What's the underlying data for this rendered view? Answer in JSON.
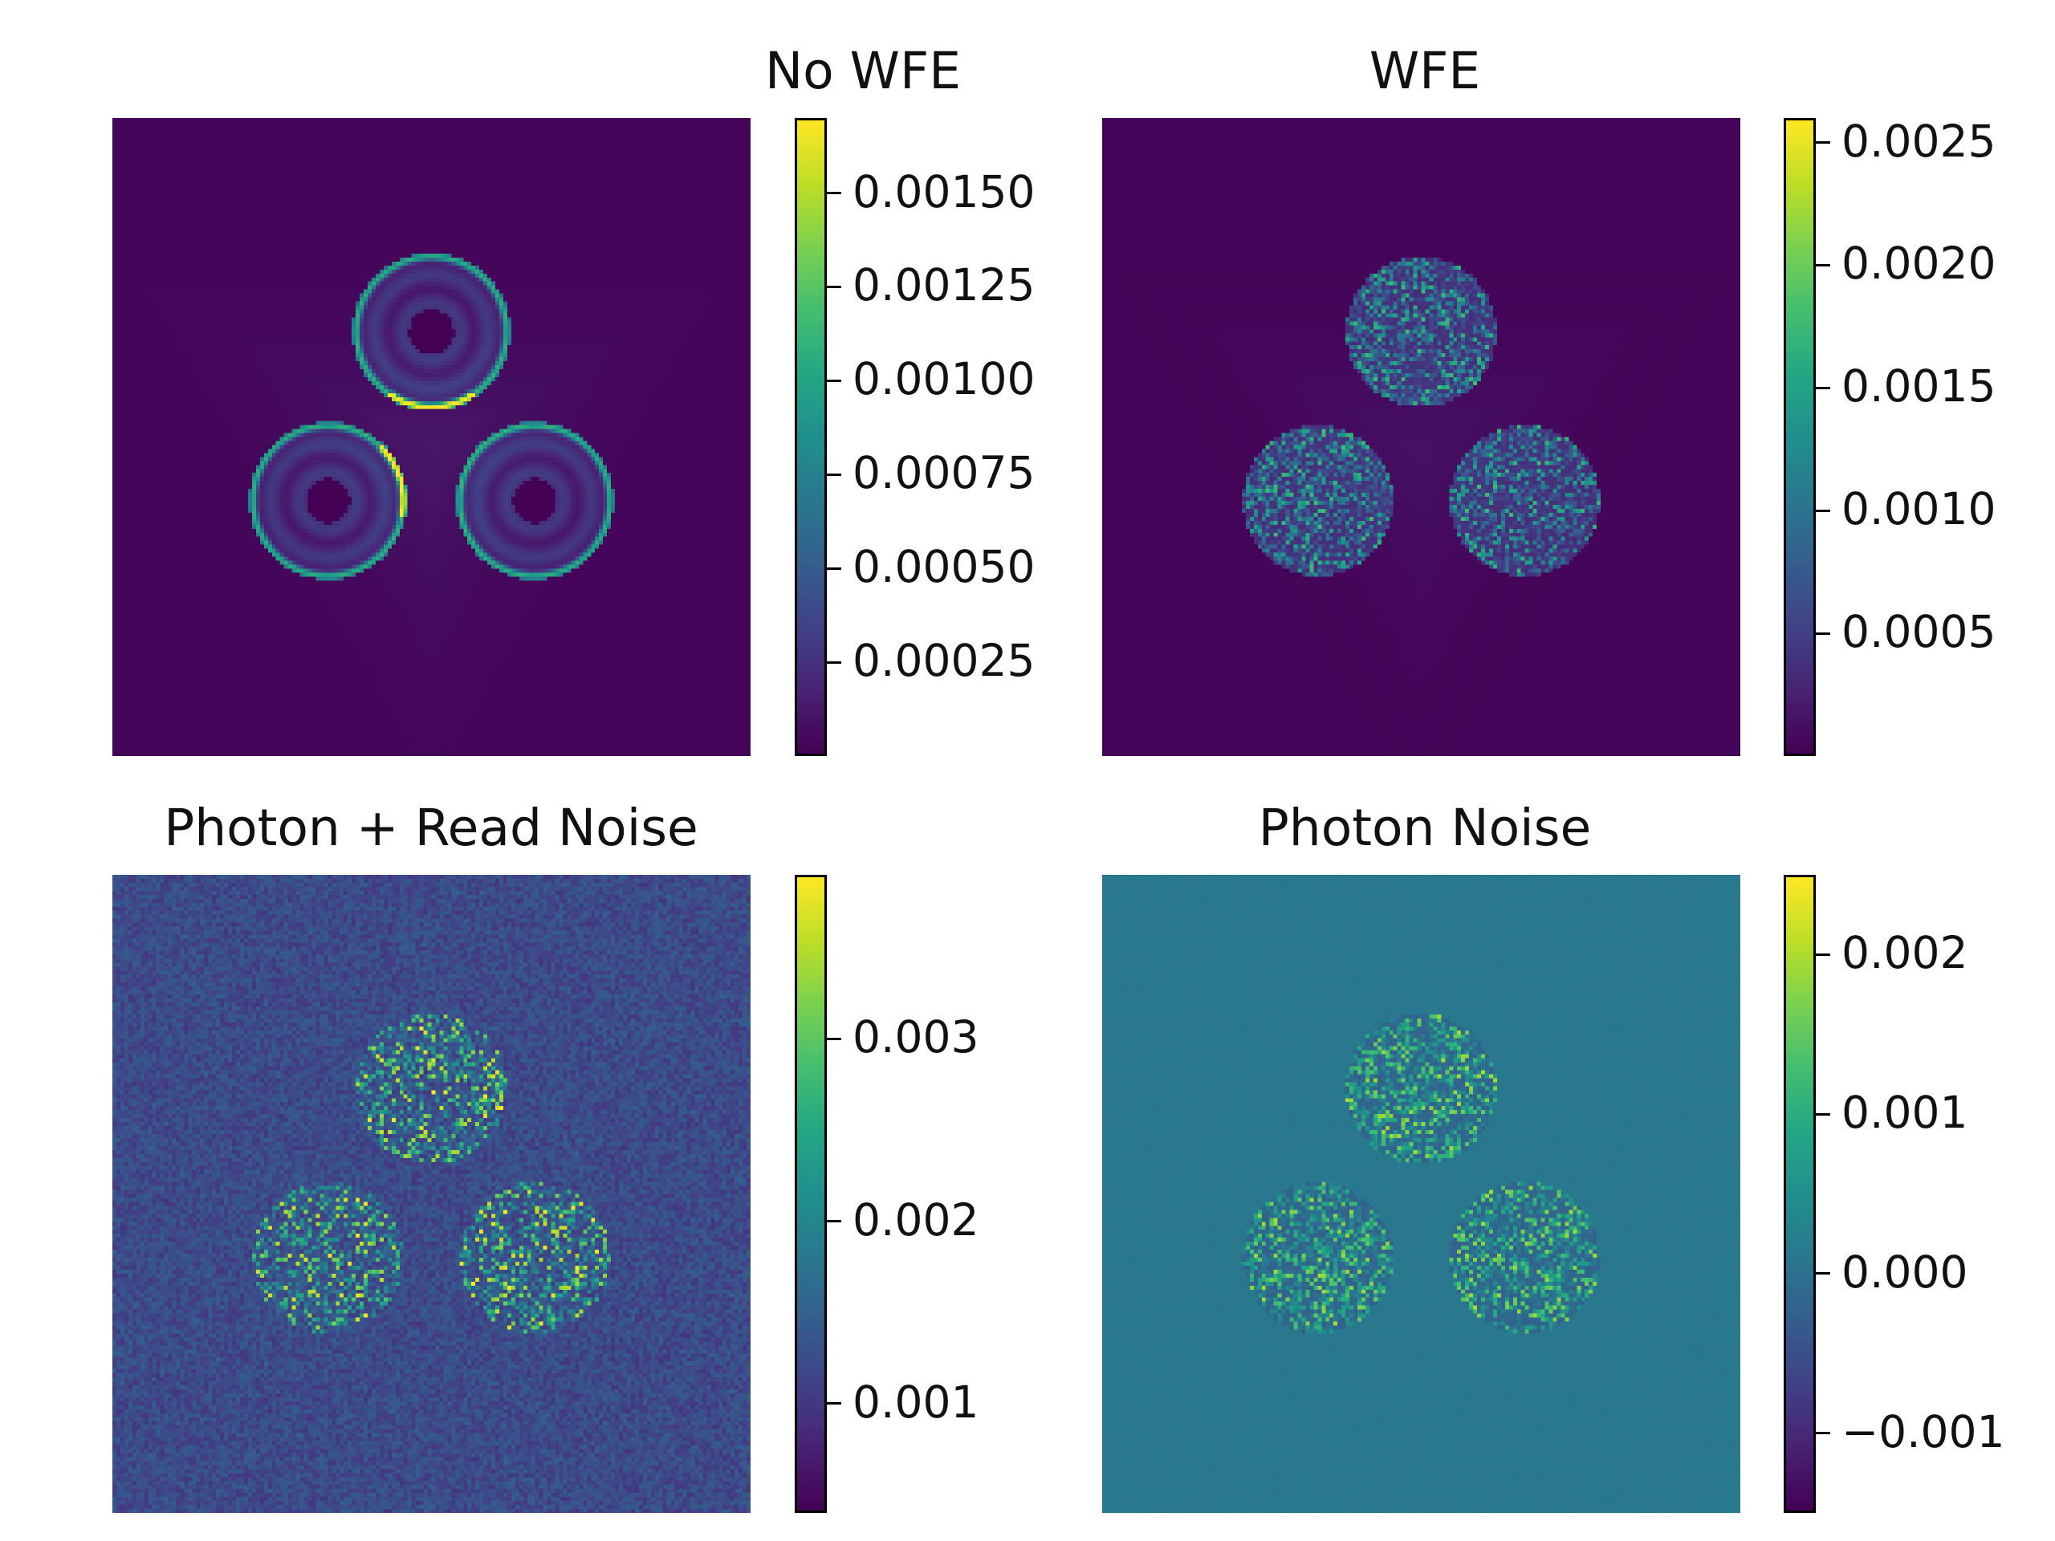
{
  "colors": {
    "viridis_low": "#440154",
    "viridis_mid": "#21918c",
    "viridis_high": "#fde725",
    "noise_background": "#2c728e"
  },
  "chart_data": [
    {
      "type": "heatmap",
      "title": "No WFE",
      "colormap": "viridis",
      "colorbar": {
        "range": [
          0.0,
          0.0017
        ],
        "ticks": [
          0.00025,
          0.0005,
          0.00075,
          0.001,
          0.00125,
          0.0015
        ],
        "tick_labels": [
          "0.00025",
          "0.00050",
          "0.00075",
          "0.00100",
          "0.00125",
          "0.00150"
        ]
      },
      "pattern": "rings",
      "axes_visible": false
    },
    {
      "type": "heatmap",
      "title": "WFE",
      "colormap": "viridis",
      "colorbar": {
        "range": [
          0.0,
          0.0026
        ],
        "ticks": [
          0.0005,
          0.001,
          0.0015,
          0.002,
          0.0025
        ],
        "tick_labels": [
          "0.0005",
          "0.0010",
          "0.0015",
          "0.0020",
          "0.0025"
        ]
      },
      "pattern": "speckle",
      "axes_visible": false
    },
    {
      "type": "heatmap",
      "title": "Photon + Read Noise",
      "colormap": "viridis",
      "colorbar": {
        "range": [
          0.0004,
          0.0039
        ],
        "ticks": [
          0.001,
          0.002,
          0.003
        ],
        "tick_labels": [
          "0.001",
          "0.002",
          "0.003"
        ]
      },
      "pattern": "noisy",
      "axes_visible": false
    },
    {
      "type": "heatmap",
      "title": "Photon Noise",
      "colormap": "viridis",
      "colorbar": {
        "range": [
          -0.0015,
          0.0025
        ],
        "ticks": [
          -0.001,
          0.0,
          0.001,
          0.002
        ],
        "tick_labels": [
          "−0.001",
          "0.000",
          "0.001",
          "0.002"
        ]
      },
      "pattern": "residual",
      "axes_visible": false
    }
  ]
}
